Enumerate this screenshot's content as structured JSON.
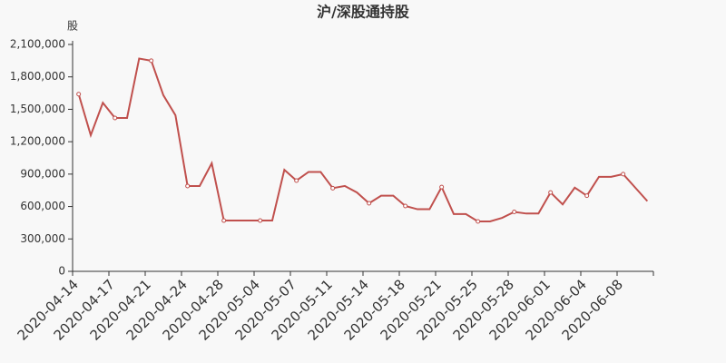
{
  "chart_data": {
    "type": "line",
    "title": "沪/深股通持股",
    "y_label": "股",
    "categories": [
      "2020-04-14",
      null,
      null,
      "2020-04-17",
      null,
      null,
      "2020-04-21",
      null,
      null,
      "2020-04-24",
      null,
      null,
      "2020-04-28",
      null,
      null,
      "2020-05-04",
      null,
      null,
      "2020-05-07",
      null,
      null,
      "2020-05-11",
      null,
      null,
      "2020-05-14",
      null,
      null,
      "2020-05-18",
      null,
      null,
      "2020-05-21",
      null,
      null,
      "2020-05-25",
      null,
      null,
      "2020-05-28",
      null,
      null,
      "2020-06-01",
      null,
      null,
      "2020-06-04",
      null,
      null,
      "2020-06-08",
      null,
      null
    ],
    "values": [
      1640000,
      1260000,
      1560000,
      1420000,
      1420000,
      1970000,
      1950000,
      1630000,
      1445000,
      790000,
      790000,
      1000000,
      470000,
      470000,
      470000,
      470000,
      470000,
      940000,
      840000,
      920000,
      920000,
      770000,
      790000,
      730000,
      630000,
      700000,
      700000,
      605000,
      575000,
      575000,
      780000,
      530000,
      530000,
      462000,
      462000,
      495000,
      550000,
      535000,
      535000,
      730000,
      620000,
      775000,
      700000,
      875000,
      875000,
      900000,
      775000,
      650000
    ],
    "color": "#c0504d",
    "ylim": [
      0,
      2100000
    ],
    "yticks": [
      0,
      {
        "value": 300000,
        "label": "300,000"
      },
      {
        "value": 600000,
        "label": "600,000"
      },
      {
        "value": 900000,
        "label": "900,000"
      },
      {
        "value": 1200000,
        "label": "1,200,000"
      },
      {
        "value": 1500000,
        "label": "1,500,000"
      },
      {
        "value": 1800000,
        "label": "1,800,000"
      },
      {
        "value": 2100000,
        "label": "2,100,000"
      }
    ]
  }
}
